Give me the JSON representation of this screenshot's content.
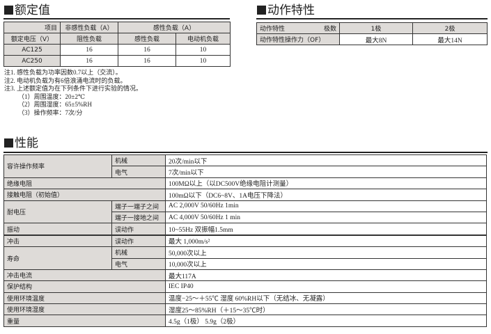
{
  "rated": {
    "title": "额定值",
    "header_item": "项目",
    "header_voltage": "额定电压（V）",
    "header_noninductive": "非感性负载（A）",
    "header_inductive": "感性负载（A）",
    "sub_resistive": "阻性负载",
    "sub_inductive": "感性负载",
    "sub_motor": "电动机负载",
    "rows": [
      {
        "voltage": "AC125",
        "resistive": "16",
        "inductive": "16",
        "motor": "10"
      },
      {
        "voltage": "AC250",
        "resistive": "16",
        "inductive": "16",
        "motor": "10"
      }
    ],
    "notes": [
      "注1. 感性负载为功率因数0.7以上（交流）。",
      "注2. 电动机负载为有6倍浪涌电流时的负载。",
      "注3. 上述额定值为在下列条件下进行实验的情况。"
    ],
    "conditions": [
      "（1）周围温度：20±2℃",
      "（2）周围湿度：65±5%RH",
      "（3）操作频率：7次/分"
    ]
  },
  "action": {
    "title": "动作特性",
    "header_label": "动作特性",
    "header_poles": "极数",
    "col1": "1极",
    "col2": "2极",
    "row_label": "动作特性操作力（OF）",
    "val1": "最大8N",
    "val2": "最大14N"
  },
  "performance": {
    "title": "性能",
    "freq": "容许操作频率",
    "mech": "机械",
    "elec": "电气",
    "freq_mech": "20次/min以下",
    "freq_elec": "7次/min以下",
    "insulation": "绝缘电阻",
    "insulation_val": "100MΩ以上（以DC500V绝缘电阻计测量）",
    "contact": "接触电阻（初始值）",
    "contact_val": "100mΩ以下（DC6~8V、1A电压下降法）",
    "withstand": "耐电压",
    "tt": "端子一端子之间",
    "tg": "端子一接地之间",
    "tt_val": "AC 2,000V 50/60Hz 1min",
    "tg_val": "AC 4,000V 50/60Hz 1 min",
    "vibration": "振动",
    "malfunction": "误动作",
    "vibration_val": "10~55Hz 双振幅1.5mm",
    "shock": "冲击",
    "shock_val": "最大 1,000m/s²",
    "life": "寿命",
    "life_mech": "50,000次以上",
    "life_elec": "10,000次以上",
    "inrush": "冲击电流",
    "inrush_val": "最大117A",
    "protection": "保护结构",
    "protection_val": "IEC IP40",
    "temp": "使用环境温度",
    "temp_val": "温度−25～＋55℃ 湿度 60%RH以下（无结冰、无凝露）",
    "humidity": "使用环境湿度",
    "humidity_val": "湿度25～85%RH（＋15～35℃时）",
    "weight": "重量",
    "weight_val": "4.5g（1极） 5.9g（2极）"
  }
}
